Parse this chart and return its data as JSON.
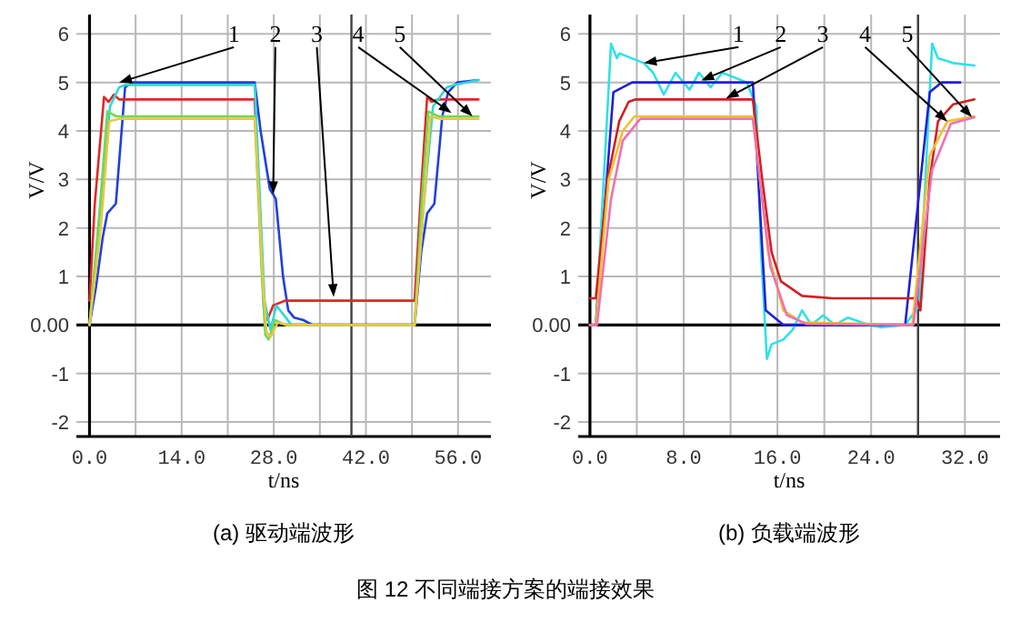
{
  "chart_data": [
    {
      "type": "line",
      "title": "(a) 驱动端波形",
      "xlabel": "t/ns",
      "ylabel": "V/V",
      "xlim": [
        -2,
        61
      ],
      "ylim": [
        -2.3,
        6.4
      ],
      "xticks": [
        {
          "value": 0,
          "label": "0.0"
        },
        {
          "value": 7,
          "label": null
        },
        {
          "value": 14,
          "label": "14.0"
        },
        {
          "value": 21,
          "label": null
        },
        {
          "value": 28,
          "label": "28.0"
        },
        {
          "value": 35,
          "label": null
        },
        {
          "value": 42,
          "label": "42.0"
        },
        {
          "value": 49,
          "label": null
        },
        {
          "value": 56,
          "label": "56.0"
        }
      ],
      "yticks": [
        -2,
        -1,
        {
          "value": 0,
          "label": "0.00"
        },
        1,
        2,
        3,
        4,
        5,
        6
      ],
      "grid": true,
      "marker": "none",
      "line_style": "solid",
      "ref_lines": [
        {
          "axis": "x",
          "value": 39.8,
          "label": null,
          "color": "#404040"
        }
      ],
      "series": [
        {
          "color": "#1f3fe0",
          "x": [
            0,
            1,
            2,
            2.7,
            4,
            5.4,
            6.5,
            25.1,
            26,
            27.4,
            28.3,
            29.4,
            30.2,
            31.1,
            32.5,
            33.9,
            49.4,
            50.4,
            51.3,
            52.4,
            53.6,
            54.5,
            55.9,
            59.1
          ],
          "values": [
            0,
            0.8,
            1.8,
            2.3,
            2.5,
            4.9,
            5.0,
            5.0,
            4.0,
            2.8,
            2.6,
            1.0,
            0.3,
            0.15,
            0.1,
            0,
            0,
            1.5,
            2.3,
            2.5,
            4.3,
            4.8,
            5.0,
            5.05
          ]
        },
        {
          "color": "#e02828",
          "x": [
            0,
            0.8,
            2.2,
            2.9,
            3.7,
            4.5,
            25.1,
            26.5,
            27,
            27.9,
            29.7,
            49.4,
            50.4,
            51.3,
            52,
            53,
            59.1
          ],
          "values": [
            0.5,
            2.5,
            4.7,
            4.6,
            4.75,
            4.65,
            4.65,
            0.3,
            0.1,
            0.4,
            0.5,
            0.5,
            2.8,
            4.7,
            4.6,
            4.65,
            4.65
          ]
        },
        {
          "color": "#30d8d8",
          "x": [
            0,
            1.5,
            3.1,
            4.5,
            5.4,
            25.1,
            26.6,
            27.5,
            28.4,
            30.7,
            49.4,
            50.8,
            52.2,
            54.3,
            55.5,
            59.1
          ],
          "values": [
            0,
            2.2,
            4.5,
            4.9,
            4.95,
            4.95,
            0.5,
            -0.1,
            0.4,
            0,
            0,
            2.5,
            4.5,
            4.9,
            4.95,
            5.05
          ]
        },
        {
          "color": "#70d858",
          "x": [
            0,
            1.5,
            2.7,
            4.1,
            25.1,
            26.2,
            26.7,
            27.2,
            28.2,
            29.8,
            49.4,
            50.5,
            51.5,
            53,
            59.1
          ],
          "values": [
            0,
            2.3,
            4.4,
            4.3,
            4.3,
            1.0,
            -0.2,
            -0.3,
            0.1,
            0,
            0,
            2.6,
            4.4,
            4.3,
            4.3
          ]
        },
        {
          "color": "#e8c840",
          "x": [
            0,
            1.7,
            3.0,
            4.5,
            25.1,
            26.4,
            26.9,
            27.5,
            28.6,
            30,
            49.4,
            50.7,
            51.8,
            53.3,
            59.1
          ],
          "values": [
            0,
            2.0,
            4.2,
            4.25,
            4.25,
            0.8,
            -0.15,
            -0.25,
            0.05,
            0,
            0,
            2.3,
            4.3,
            4.25,
            4.25
          ]
        }
      ],
      "annotations": [
        {
          "text": "1",
          "x": 4.5,
          "y": 5.0
        },
        {
          "text": "2",
          "x": 27.9,
          "y": 2.7
        },
        {
          "text": "3",
          "x": 37.1,
          "y": 0.58
        },
        {
          "text": "4",
          "x": 55,
          "y": 4.37
        },
        {
          "text": "5",
          "x": 58.2,
          "y": 4.3
        },
        "图 12   不同端接方案的端接效果"
      ]
    },
    {
      "type": "line",
      "title": "(b) 负载端波形",
      "xlabel": "t/ns",
      "ylabel": "V/V",
      "xlim": [
        -1,
        35
      ],
      "ylim": [
        -2.3,
        6.4
      ],
      "xticks": [
        {
          "value": 0,
          "label": "0.0"
        },
        {
          "value": 4,
          "label": null
        },
        {
          "value": 8,
          "label": "8.0"
        },
        {
          "value": 12,
          "label": null
        },
        {
          "value": 16,
          "label": "16.0"
        },
        {
          "value": 20,
          "label": null
        },
        {
          "value": 24,
          "label": "24.0"
        },
        {
          "value": 28,
          "label": null
        },
        {
          "value": 32,
          "label": "32.0"
        }
      ],
      "yticks": [
        -2,
        -1,
        {
          "value": 0,
          "label": "0.00"
        },
        1,
        2,
        3,
        4,
        5,
        6
      ],
      "grid": true,
      "marker": "none",
      "line_style": "solid",
      "ref_lines": [
        {
          "axis": "x",
          "value": 28,
          "label": null,
          "color": "#404040"
        }
      ],
      "series": [
        {
          "color": "#30e0e8",
          "x": [
            0,
            0.5,
            1.8,
            2.3,
            2.5,
            4.6,
            5.4,
            6.3,
            7.3,
            8.5,
            9.3,
            10.3,
            11.3,
            13.4,
            14.2,
            14.6,
            15.1,
            15.5,
            16.5,
            17.3,
            18.1,
            18.9,
            19.9,
            20.9,
            22,
            23.8,
            24.8,
            26.9,
            28.1,
            29.2,
            29.7,
            31,
            32.8
          ],
          "values": [
            0,
            0,
            5.8,
            5.5,
            5.6,
            5.4,
            5.2,
            4.75,
            5.2,
            4.85,
            5.2,
            4.9,
            5.2,
            5.0,
            4.5,
            1.5,
            -0.7,
            -0.4,
            -0.3,
            -0.1,
            0.3,
            0,
            0.2,
            0,
            0.15,
            0,
            -0.05,
            0,
            0.4,
            5.8,
            5.5,
            5.4,
            5.35
          ]
        },
        {
          "color": "#2020d8",
          "x": [
            0,
            0.5,
            2.0,
            3.6,
            13.9,
            15,
            16.5,
            26.9,
            29,
            30,
            31.6
          ],
          "values": [
            0,
            0,
            4.8,
            5.0,
            5.0,
            0.3,
            0,
            0,
            4.8,
            5.0,
            5.0
          ]
        },
        {
          "color": "#d02020",
          "x": [
            0,
            0.5,
            1.5,
            2.5,
            3.3,
            3.9,
            13.9,
            14.7,
            15.5,
            16.3,
            18.1,
            20.7,
            27.9,
            28.2,
            29,
            29.7,
            31,
            32.8
          ],
          "values": [
            0.55,
            0.55,
            3.0,
            4.2,
            4.6,
            4.65,
            4.65,
            3.0,
            1.5,
            0.9,
            0.6,
            0.55,
            0.55,
            0.3,
            3.0,
            4.2,
            4.55,
            4.65
          ]
        },
        {
          "color": "#f0c030",
          "x": [
            0,
            0.5,
            1.6,
            2.8,
            3.8,
            13.9,
            15.2,
            16.5,
            18.1,
            27.5,
            29,
            30.5,
            32.8
          ],
          "values": [
            0,
            0,
            3.0,
            4.0,
            4.3,
            4.3,
            1.5,
            0.3,
            0.05,
            0,
            3.5,
            4.2,
            4.3
          ]
        },
        {
          "color": "#f070b0",
          "x": [
            0,
            0.6,
            1.8,
            2.8,
            4.3,
            13.9,
            15.4,
            16.8,
            18.5,
            27.6,
            29.2,
            30.8,
            32.8
          ],
          "values": [
            0,
            0,
            2.6,
            3.8,
            4.25,
            4.25,
            1.2,
            0.2,
            0.02,
            0,
            3.2,
            4.15,
            4.28
          ]
        }
      ],
      "annotations": [
        {
          "text": "1",
          "x": 4.6,
          "y": 5.4
        },
        {
          "text": "2",
          "x": 9.5,
          "y": 5.04
        },
        {
          "text": "3",
          "x": 11.6,
          "y": 4.67
        },
        {
          "text": "4",
          "x": 30.5,
          "y": 4.19
        },
        {
          "text": "5",
          "x": 32.6,
          "y": 4.28
        }
      ]
    }
  ]
}
